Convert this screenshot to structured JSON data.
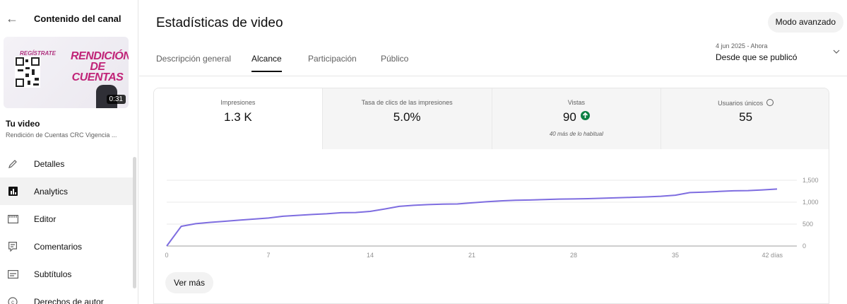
{
  "sidebar": {
    "title": "Contenido del canal",
    "video_label": "Tu video",
    "video_name": "Rendición de Cuentas CRC Vigencia ...",
    "thumbnail": {
      "brand_text": "REGÍSTRATE",
      "headline": "RENDICIÓN DE CUENTAS",
      "duration": "0:31"
    },
    "items": [
      {
        "label": "Detalles",
        "icon": "pencil-icon"
      },
      {
        "label": "Analytics",
        "icon": "analytics-icon"
      },
      {
        "label": "Editor",
        "icon": "clapper-icon"
      },
      {
        "label": "Comentarios",
        "icon": "comment-icon"
      },
      {
        "label": "Subtítulos",
        "icon": "subtitles-icon"
      },
      {
        "label": "Derechos de autor",
        "icon": "copyright-icon"
      }
    ],
    "active_item": "Analytics"
  },
  "header": {
    "title": "Estadísticas de video",
    "advanced_label": "Modo avanzado"
  },
  "tabs": [
    {
      "label": "Descripción general",
      "active": false
    },
    {
      "label": "Alcance",
      "active": true
    },
    {
      "label": "Participación",
      "active": false
    },
    {
      "label": "Público",
      "active": false
    }
  ],
  "date_range": {
    "range": "4 jun 2025 - Ahora",
    "label": "Desde que se publicó"
  },
  "metrics": [
    {
      "label": "Impresiones",
      "value": "1.3 K",
      "sub": ""
    },
    {
      "label": "Tasa de clics de las impresiones",
      "value": "5.0%",
      "sub": ""
    },
    {
      "label": "Vistas",
      "value": "90",
      "sub": "40 más de lo habitual",
      "trend": "up"
    },
    {
      "label": "Usuarios únicos",
      "value": "55",
      "sub": ""
    }
  ],
  "colors": {
    "line": "#7e6de0",
    "up_badge": "#0b8043"
  },
  "chart_data": {
    "type": "line",
    "x_ticks": [
      "0",
      "7",
      "14",
      "21",
      "28",
      "35",
      "42 días"
    ],
    "y_ticks": [
      "0",
      "500",
      "1,000",
      "1,500"
    ],
    "ylim": [
      0,
      1500
    ],
    "xlim": [
      0,
      42
    ],
    "grid": true,
    "series": [
      {
        "x": [
          0,
          1,
          2,
          3,
          4,
          5,
          6,
          7,
          8,
          9,
          10,
          11,
          12,
          13,
          14,
          15,
          16,
          17,
          18,
          19,
          20,
          21,
          22,
          23,
          24,
          25,
          26,
          27,
          28,
          29,
          30,
          31,
          32,
          33,
          34,
          35,
          36,
          37,
          38,
          39,
          40,
          41,
          42
        ],
        "y": [
          0,
          450,
          510,
          540,
          565,
          590,
          615,
          640,
          680,
          700,
          720,
          735,
          760,
          765,
          790,
          845,
          905,
          930,
          945,
          955,
          960,
          985,
          1010,
          1030,
          1045,
          1050,
          1060,
          1070,
          1075,
          1080,
          1090,
          1100,
          1110,
          1120,
          1135,
          1160,
          1220,
          1230,
          1245,
          1260,
          1265,
          1280,
          1300
        ]
      }
    ]
  },
  "more_label": "Ver más"
}
